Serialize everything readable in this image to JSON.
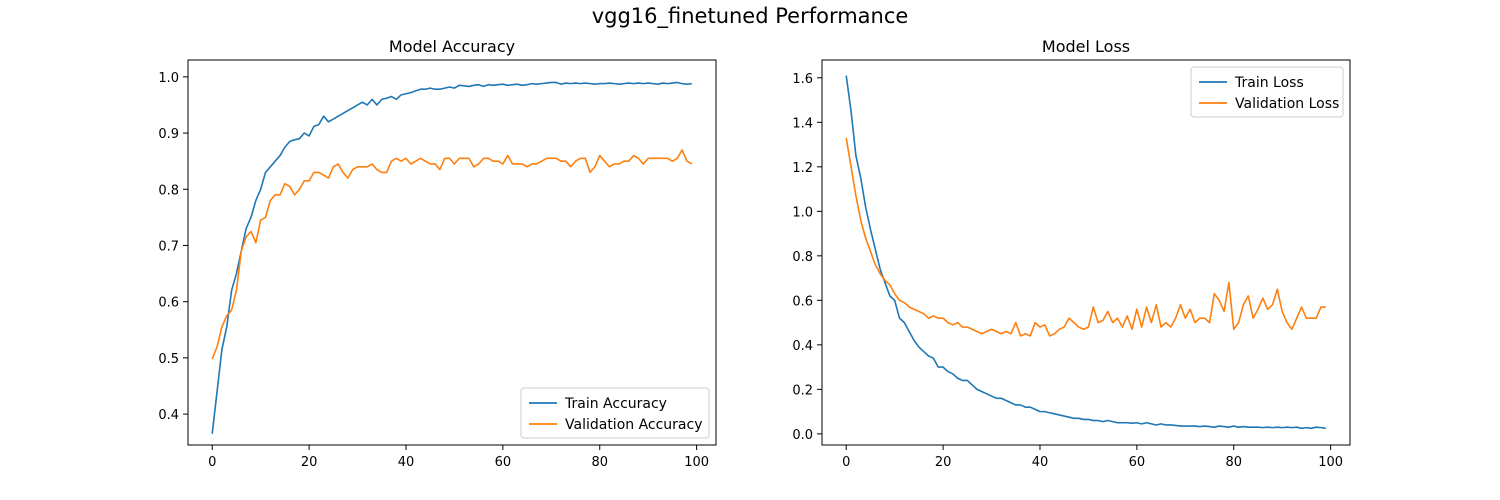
{
  "figure": {
    "title": "vgg16_finetuned Performance"
  },
  "chart_data": [
    {
      "type": "line",
      "title": "Model Accuracy",
      "xlabel": "",
      "ylabel": "",
      "xlim": [
        -5,
        104
      ],
      "ylim": [
        0.345,
        1.03
      ],
      "xticks": [
        0,
        20,
        40,
        60,
        80,
        100
      ],
      "yticks": [
        0.4,
        0.5,
        0.6,
        0.7,
        0.8,
        0.9,
        1.0
      ],
      "ytick_labels": [
        "0.4",
        "0.5",
        "0.6",
        "0.7",
        "0.8",
        "0.9",
        "1.0"
      ],
      "grid": false,
      "legend_position": "lower-right",
      "series": [
        {
          "name": "Train Accuracy",
          "color": "#1f77b4",
          "values": [
            0.365,
            0.44,
            0.515,
            0.555,
            0.62,
            0.65,
            0.69,
            0.73,
            0.75,
            0.78,
            0.8,
            0.83,
            0.84,
            0.85,
            0.86,
            0.875,
            0.885,
            0.888,
            0.89,
            0.9,
            0.895,
            0.912,
            0.915,
            0.93,
            0.92,
            0.925,
            0.93,
            0.935,
            0.94,
            0.945,
            0.95,
            0.955,
            0.95,
            0.96,
            0.95,
            0.96,
            0.962,
            0.965,
            0.96,
            0.968,
            0.97,
            0.972,
            0.975,
            0.978,
            0.978,
            0.98,
            0.978,
            0.978,
            0.98,
            0.982,
            0.98,
            0.985,
            0.984,
            0.983,
            0.985,
            0.986,
            0.983,
            0.986,
            0.985,
            0.986,
            0.987,
            0.985,
            0.986,
            0.987,
            0.985,
            0.986,
            0.988,
            0.987,
            0.988,
            0.989,
            0.99,
            0.99,
            0.987,
            0.989,
            0.988,
            0.989,
            0.988,
            0.989,
            0.988,
            0.987,
            0.988,
            0.988,
            0.989,
            0.988,
            0.987,
            0.988,
            0.989,
            0.988,
            0.989,
            0.988,
            0.989,
            0.988,
            0.987,
            0.989,
            0.988,
            0.989,
            0.99,
            0.988,
            0.987,
            0.988
          ]
        },
        {
          "name": "Validation Accuracy",
          "color": "#ff7f0e",
          "values": [
            0.498,
            0.52,
            0.555,
            0.575,
            0.585,
            0.62,
            0.69,
            0.715,
            0.725,
            0.705,
            0.745,
            0.75,
            0.78,
            0.79,
            0.79,
            0.81,
            0.805,
            0.79,
            0.8,
            0.815,
            0.815,
            0.83,
            0.83,
            0.825,
            0.82,
            0.84,
            0.845,
            0.83,
            0.82,
            0.835,
            0.84,
            0.84,
            0.84,
            0.845,
            0.835,
            0.83,
            0.83,
            0.85,
            0.855,
            0.85,
            0.855,
            0.845,
            0.85,
            0.855,
            0.85,
            0.845,
            0.845,
            0.835,
            0.855,
            0.855,
            0.845,
            0.855,
            0.855,
            0.855,
            0.84,
            0.845,
            0.855,
            0.855,
            0.85,
            0.85,
            0.845,
            0.86,
            0.845,
            0.845,
            0.845,
            0.84,
            0.845,
            0.845,
            0.85,
            0.855,
            0.855,
            0.855,
            0.85,
            0.85,
            0.84,
            0.85,
            0.855,
            0.855,
            0.83,
            0.84,
            0.86,
            0.85,
            0.84,
            0.845,
            0.845,
            0.85,
            0.85,
            0.86,
            0.855,
            0.845,
            0.855,
            0.855,
            0.855,
            0.855,
            0.855,
            0.85,
            0.855,
            0.87,
            0.85,
            0.845
          ]
        }
      ]
    },
    {
      "type": "line",
      "title": "Model Loss",
      "xlabel": "",
      "ylabel": "",
      "xlim": [
        -5,
        104
      ],
      "ylim": [
        -0.05,
        1.68
      ],
      "xticks": [
        0,
        20,
        40,
        60,
        80,
        100
      ],
      "yticks": [
        0.0,
        0.2,
        0.4,
        0.6,
        0.8,
        1.0,
        1.2,
        1.4,
        1.6
      ],
      "ytick_labels": [
        "0.0",
        "0.2",
        "0.4",
        "0.6",
        "0.8",
        "1.0",
        "1.2",
        "1.4",
        "1.6"
      ],
      "grid": false,
      "legend_position": "upper-right",
      "series": [
        {
          "name": "Train Loss",
          "color": "#1f77b4",
          "values": [
            1.61,
            1.45,
            1.25,
            1.15,
            1.02,
            0.92,
            0.83,
            0.74,
            0.68,
            0.62,
            0.6,
            0.52,
            0.5,
            0.46,
            0.42,
            0.39,
            0.37,
            0.35,
            0.34,
            0.3,
            0.3,
            0.28,
            0.27,
            0.25,
            0.24,
            0.24,
            0.22,
            0.2,
            0.19,
            0.18,
            0.17,
            0.16,
            0.16,
            0.15,
            0.14,
            0.13,
            0.13,
            0.12,
            0.12,
            0.11,
            0.1,
            0.1,
            0.095,
            0.09,
            0.085,
            0.08,
            0.075,
            0.07,
            0.07,
            0.065,
            0.065,
            0.06,
            0.06,
            0.055,
            0.06,
            0.055,
            0.05,
            0.05,
            0.05,
            0.048,
            0.05,
            0.045,
            0.05,
            0.045,
            0.04,
            0.045,
            0.04,
            0.04,
            0.038,
            0.035,
            0.035,
            0.035,
            0.035,
            0.033,
            0.035,
            0.033,
            0.03,
            0.035,
            0.033,
            0.03,
            0.035,
            0.03,
            0.033,
            0.03,
            0.03,
            0.03,
            0.028,
            0.03,
            0.028,
            0.03,
            0.028,
            0.03,
            0.028,
            0.03,
            0.025,
            0.028,
            0.025,
            0.03,
            0.028,
            0.025
          ]
        },
        {
          "name": "Validation Loss",
          "color": "#ff7f0e",
          "values": [
            1.33,
            1.2,
            1.07,
            0.96,
            0.88,
            0.82,
            0.76,
            0.72,
            0.69,
            0.67,
            0.63,
            0.6,
            0.59,
            0.57,
            0.56,
            0.55,
            0.54,
            0.52,
            0.53,
            0.52,
            0.52,
            0.5,
            0.49,
            0.5,
            0.48,
            0.48,
            0.47,
            0.46,
            0.45,
            0.46,
            0.47,
            0.46,
            0.45,
            0.46,
            0.45,
            0.5,
            0.44,
            0.45,
            0.44,
            0.5,
            0.48,
            0.49,
            0.44,
            0.45,
            0.47,
            0.48,
            0.52,
            0.5,
            0.48,
            0.47,
            0.48,
            0.57,
            0.5,
            0.51,
            0.55,
            0.5,
            0.52,
            0.48,
            0.53,
            0.47,
            0.56,
            0.48,
            0.57,
            0.5,
            0.58,
            0.48,
            0.5,
            0.48,
            0.52,
            0.58,
            0.52,
            0.56,
            0.5,
            0.52,
            0.52,
            0.5,
            0.63,
            0.6,
            0.55,
            0.68,
            0.47,
            0.5,
            0.58,
            0.62,
            0.52,
            0.56,
            0.61,
            0.56,
            0.58,
            0.65,
            0.55,
            0.5,
            0.47,
            0.52,
            0.57,
            0.52,
            0.52,
            0.52,
            0.57,
            0.57
          ]
        }
      ]
    }
  ]
}
